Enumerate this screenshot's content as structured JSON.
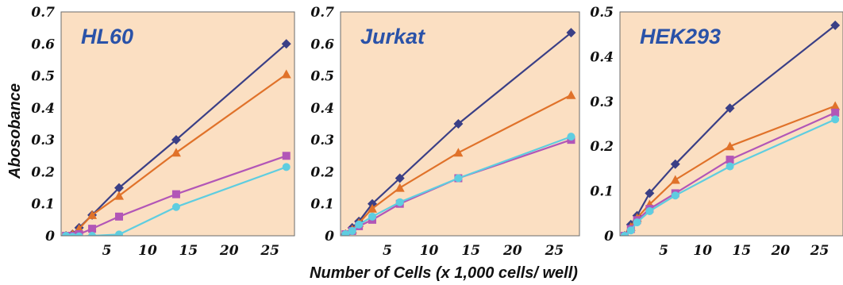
{
  "chart_data": [
    {
      "type": "line",
      "title": "HL60",
      "ylim": [
        0,
        0.7
      ],
      "yticks": [
        "0",
        "0.1",
        "0.2",
        "0.3",
        "0.4",
        "0.5",
        "0.6",
        "0.7"
      ],
      "xlim": [
        -0.6,
        28
      ],
      "xticks": [
        "5",
        "10",
        "15",
        "20",
        "25"
      ],
      "grid": false,
      "x": [
        0,
        0.8,
        1.6,
        3.2,
        6.5,
        13.5,
        27
      ],
      "series": [
        {
          "color": "#3a3f86",
          "marker": "diamond",
          "values": [
            0.0,
            0.005,
            0.025,
            0.065,
            0.15,
            0.3,
            0.6
          ]
        },
        {
          "color": "#e0722a",
          "marker": "triangle",
          "values": [
            0.0,
            0.005,
            0.022,
            0.065,
            0.125,
            0.26,
            0.505
          ]
        },
        {
          "color": "#b256b7",
          "marker": "square",
          "values": [
            0.0,
            0.0,
            0.005,
            0.022,
            0.06,
            0.13,
            0.25
          ]
        },
        {
          "color": "#5ecde0",
          "marker": "circle",
          "values": [
            0.0,
            -0.003,
            -0.002,
            0.0,
            0.004,
            0.09,
            0.215
          ]
        }
      ]
    },
    {
      "type": "line",
      "title": "Jurkat",
      "ylim": [
        0,
        0.7
      ],
      "yticks": [
        "0",
        "0.1",
        "0.2",
        "0.3",
        "0.4",
        "0.5",
        "0.6",
        "0.7"
      ],
      "xlim": [
        -0.6,
        28
      ],
      "xticks": [
        "5",
        "10",
        "15",
        "20",
        "25"
      ],
      "grid": false,
      "x": [
        0,
        0.8,
        1.6,
        3.2,
        6.5,
        13.5,
        27
      ],
      "series": [
        {
          "color": "#3a3f86",
          "marker": "diamond",
          "values": [
            0.005,
            0.025,
            0.045,
            0.1,
            0.18,
            0.35,
            0.635
          ]
        },
        {
          "color": "#e0722a",
          "marker": "triangle",
          "values": [
            0.005,
            0.02,
            0.04,
            0.085,
            0.15,
            0.26,
            0.44
          ]
        },
        {
          "color": "#b256b7",
          "marker": "square",
          "values": [
            0.005,
            0.015,
            0.03,
            0.05,
            0.1,
            0.18,
            0.3
          ]
        },
        {
          "color": "#5ecde0",
          "marker": "circle",
          "values": [
            0.005,
            0.015,
            0.035,
            0.06,
            0.105,
            0.18,
            0.31
          ]
        }
      ]
    },
    {
      "type": "line",
      "title": "HEK293",
      "ylim": [
        0,
        0.5
      ],
      "yticks": [
        "0",
        "0.1",
        "0.2",
        "0.3",
        "0.4",
        "0.5"
      ],
      "xlim": [
        -0.6,
        28
      ],
      "xticks": [
        "5",
        "10",
        "15",
        "20",
        "25"
      ],
      "grid": false,
      "x": [
        0,
        0.8,
        1.6,
        3.2,
        6.5,
        13.5,
        27
      ],
      "series": [
        {
          "color": "#3a3f86",
          "marker": "diamond",
          "values": [
            0.0,
            0.025,
            0.045,
            0.095,
            0.16,
            0.285,
            0.47
          ]
        },
        {
          "color": "#e0722a",
          "marker": "triangle",
          "values": [
            0.0,
            0.02,
            0.04,
            0.07,
            0.125,
            0.2,
            0.29
          ]
        },
        {
          "color": "#b256b7",
          "marker": "square",
          "values": [
            0.0,
            0.015,
            0.035,
            0.06,
            0.095,
            0.17,
            0.275
          ]
        },
        {
          "color": "#5ecde0",
          "marker": "circle",
          "values": [
            0.0,
            0.012,
            0.03,
            0.055,
            0.09,
            0.155,
            0.26
          ]
        }
      ]
    }
  ],
  "ylabel": "Abosobance",
  "xlabel": "Number of Cells (x 1,000 cells/ well)",
  "colors": {
    "panel_background": "#fbdfc2",
    "panel_border": "#6b6b6b"
  }
}
